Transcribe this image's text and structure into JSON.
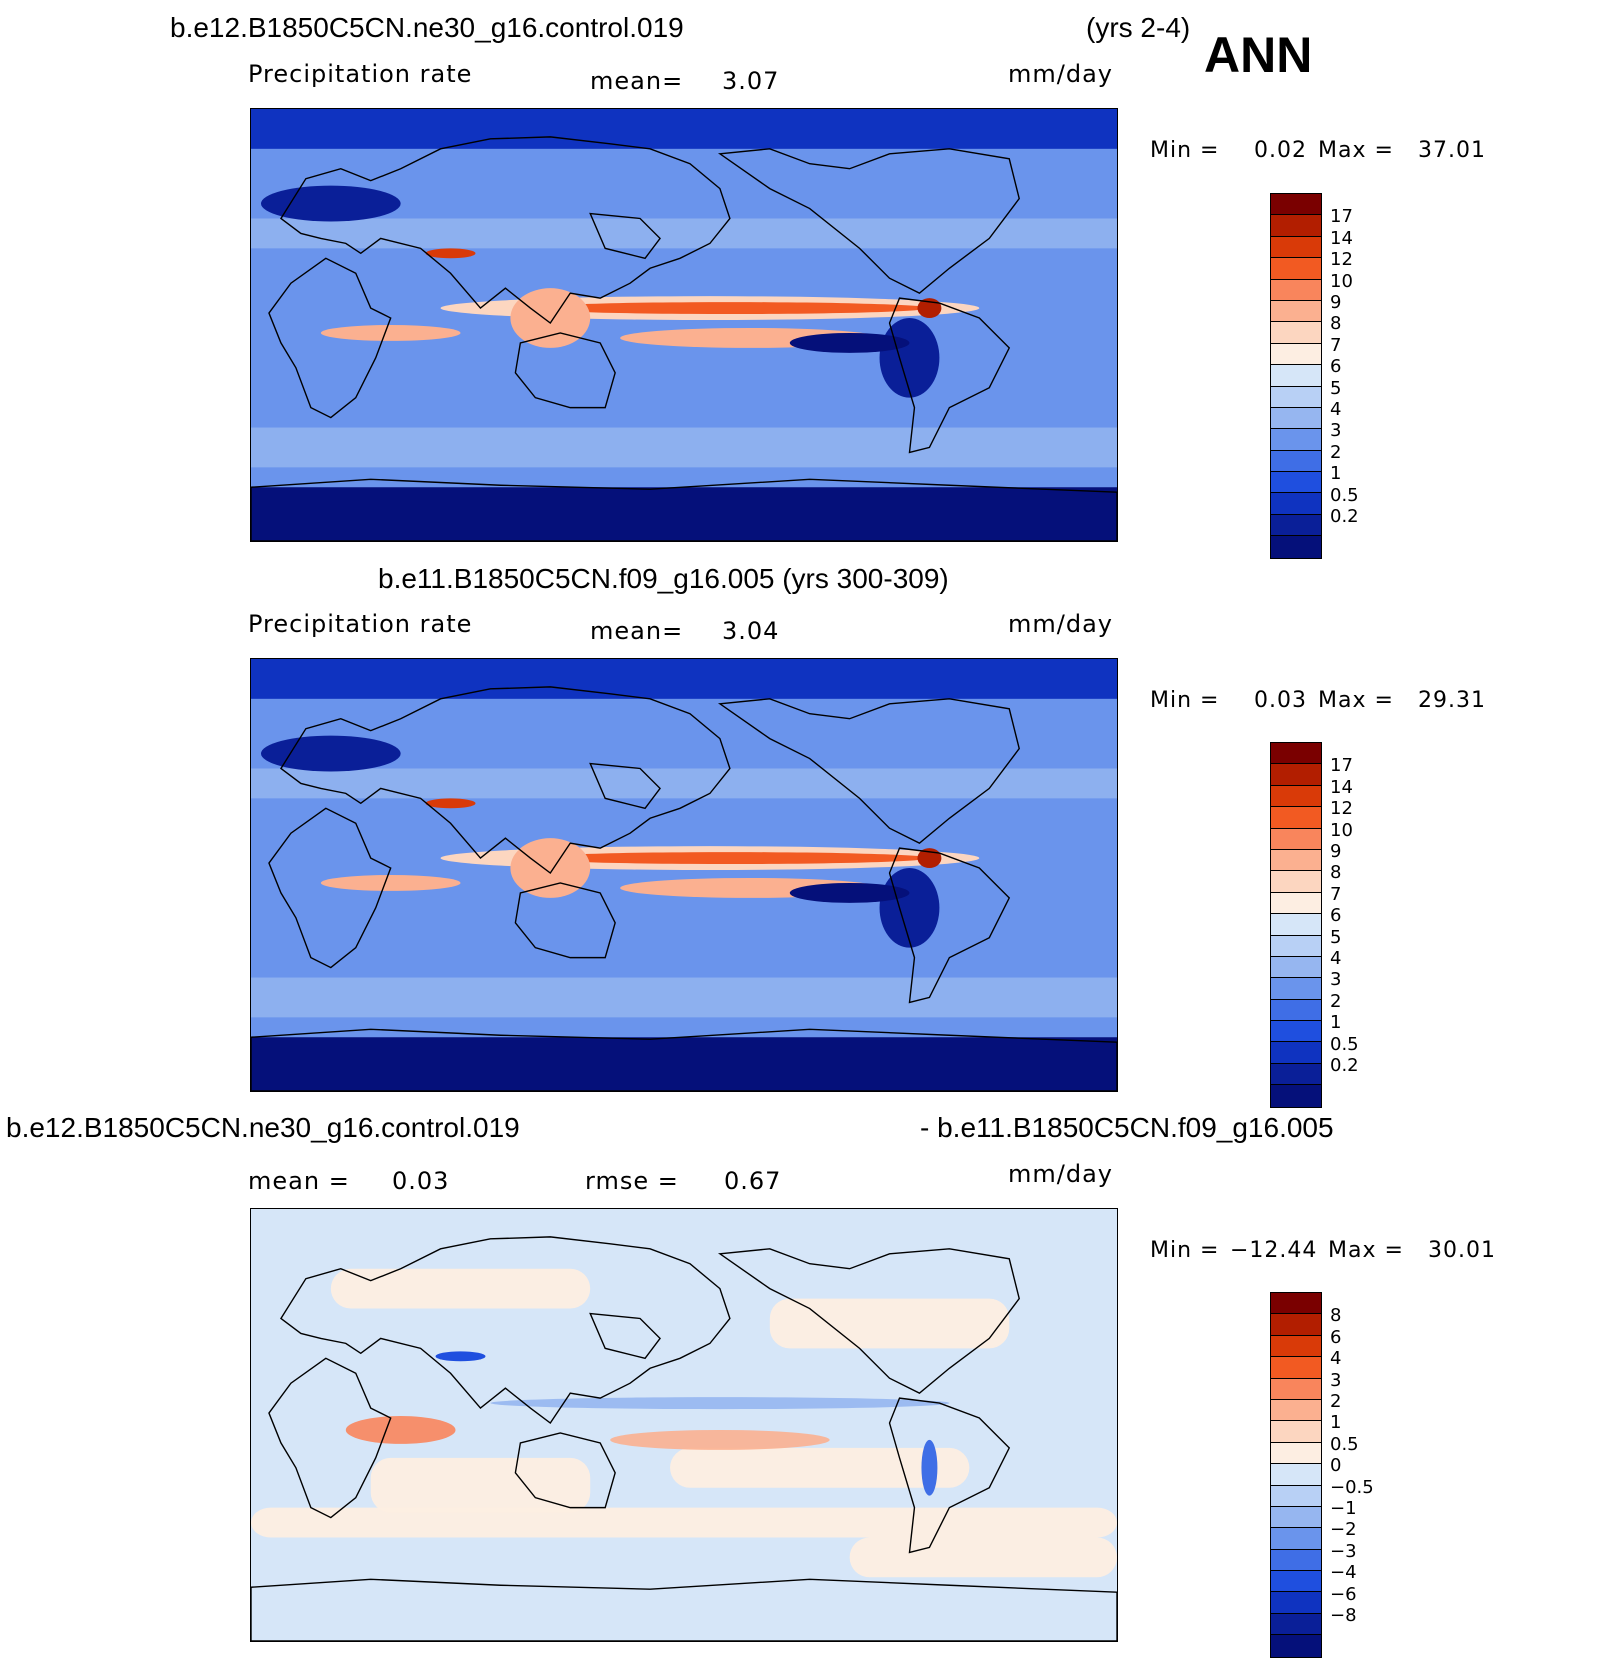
{
  "season": "ANN",
  "panels": [
    {
      "case_title": "b.e12.B1850C5CN.ne30_g16.control.019",
      "years": "(yrs 2-4)",
      "var_label": "Precipitation rate",
      "stat_label": "mean=",
      "stat_value": "3.07",
      "units": "mm/day",
      "min_label": "Min =",
      "min_value": "0.02",
      "max_label": "Max =",
      "max_value": "37.01"
    },
    {
      "case_title": "b.e11.B1850C5CN.f09_g16.005 (yrs 300-309)",
      "var_label": "Precipitation rate",
      "stat_label": "mean=",
      "stat_value": "3.04",
      "units": "mm/day",
      "min_label": "Min =",
      "min_value": "0.03",
      "max_label": "Max =",
      "max_value": "29.31"
    },
    {
      "case_title_left": "b.e12.B1850C5CN.ne30_g16.control.019",
      "case_title_right": "- b.e11.B1850C5CN.f09_g16.005",
      "mean_label": "mean =",
      "mean_value": "0.03",
      "rmse_label": "rmse =",
      "rmse_value": "0.67",
      "units": "mm/day",
      "min_label": "Min =",
      "min_value": "−12.44",
      "max_label": "Max =",
      "max_value": "30.01"
    }
  ],
  "colorbar_abs": {
    "colors": [
      "#7a0000",
      "#b21e00",
      "#d93a08",
      "#f25a22",
      "#f9855c",
      "#fbb090",
      "#fcd6c0",
      "#fdeee2",
      "#d6e6f8",
      "#b8d0f5",
      "#96b6f0",
      "#6a94ec",
      "#3f6ee6",
      "#1f4fdf",
      "#0f33c0",
      "#0a1f98",
      "#05107a"
    ],
    "labels": [
      "17",
      "14",
      "12",
      "10",
      "9",
      "8",
      "7",
      "6",
      "5",
      "4",
      "3",
      "2",
      "1",
      "0.5",
      "0.2"
    ]
  },
  "colorbar_diff": {
    "colors": [
      "#7a0000",
      "#b21e00",
      "#d93a08",
      "#f25a22",
      "#f9855c",
      "#fbb090",
      "#fcd6c0",
      "#fdeee2",
      "#d6e6f8",
      "#b8d0f5",
      "#96b6f0",
      "#6a94ec",
      "#3f6ee6",
      "#1f4fdf",
      "#0f33c0",
      "#0a1f98",
      "#05107a"
    ],
    "labels": [
      "8",
      "6",
      "4",
      "3",
      "2",
      "1",
      "0.5",
      "0",
      "−0.5",
      "−1",
      "−2",
      "−3",
      "−4",
      "−6",
      "−8"
    ]
  }
}
